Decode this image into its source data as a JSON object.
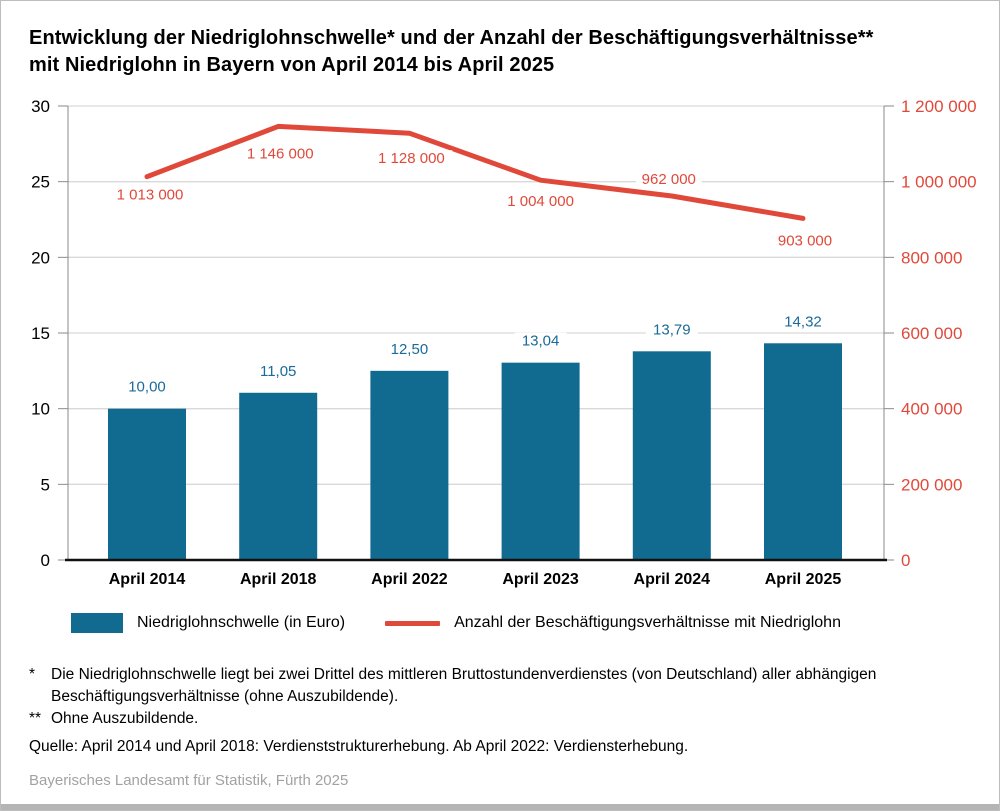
{
  "title": {
    "line1": "Entwicklung der Niedriglohnschwelle* und der Anzahl der Beschäftigungsverhältnisse**",
    "line2": "mit Niedriglohn in Bayern von April 2014 bis April 2025"
  },
  "chart_data": {
    "type": "bar",
    "subtype": "bar-and-line-dual-axis",
    "categories": [
      "April 2014",
      "April 2018",
      "April 2022",
      "April 2023",
      "April 2024",
      "April 2025"
    ],
    "series": [
      {
        "name": "Niedriglohnschwelle (in Euro)",
        "type": "bar",
        "axis": "left",
        "color": "#116A90",
        "values": [
          10.0,
          11.05,
          12.5,
          13.04,
          13.79,
          14.32
        ],
        "value_labels": [
          "10,00",
          "11,05",
          "12,50",
          "13,04",
          "13,79",
          "14,32"
        ]
      },
      {
        "name": "Anzahl der Beschäftigungsverhältnisse mit Niedriglohn",
        "type": "line",
        "axis": "right",
        "color": "#E0493A",
        "values": [
          1013000,
          1146000,
          1128000,
          1004000,
          962000,
          903000
        ],
        "value_labels": [
          "1 013 000",
          "1 146 000",
          "1 128 000",
          "1 004 000",
          "962 000",
          "903 000"
        ]
      }
    ],
    "left_axis": {
      "min": 0,
      "max": 30,
      "step": 5,
      "ticks": [
        "0",
        "5",
        "10",
        "15",
        "20",
        "25",
        "30"
      ],
      "color": "#000000"
    },
    "right_axis": {
      "min": 0,
      "max": 1200000,
      "step": 200000,
      "ticks": [
        "0",
        "200 000",
        "400 000",
        "600 000",
        "800 000",
        "1 000 000",
        "1 200 000"
      ],
      "color": "#E0493A"
    },
    "grid": true,
    "legend_position": "bottom"
  },
  "legend": {
    "bar_label": "Niedriglohnschwelle (in Euro)",
    "line_label": "Anzahl der Beschäftigungsverhältnisse mit Niedriglohn",
    "bar_color": "#116A90",
    "line_color": "#E0493A"
  },
  "footnotes": {
    "fn1_marker": "*",
    "fn1_text": "Die Niedriglohnschwelle liegt bei zwei Drittel des mittleren Bruttostundenverdienstes (von Deutschland) aller abhängigen Beschäftigungsverhältnisse (ohne Auszubildende).",
    "fn2_marker": "**",
    "fn2_text": "Ohne Auszubildende."
  },
  "source": "Quelle: April 2014 und April 2018: Verdienststrukturerhebung. Ab April 2022: Verdiensterhebung.",
  "credit": "Bayerisches Landesamt für Statistik, Fürth 2025",
  "colors": {
    "bar": "#116A90",
    "bar_value_text": "#1A6B9A",
    "line": "#E0493A",
    "gridline": "#D9D9D9",
    "axis": "#8A8A8A",
    "baseline": "#111111"
  }
}
